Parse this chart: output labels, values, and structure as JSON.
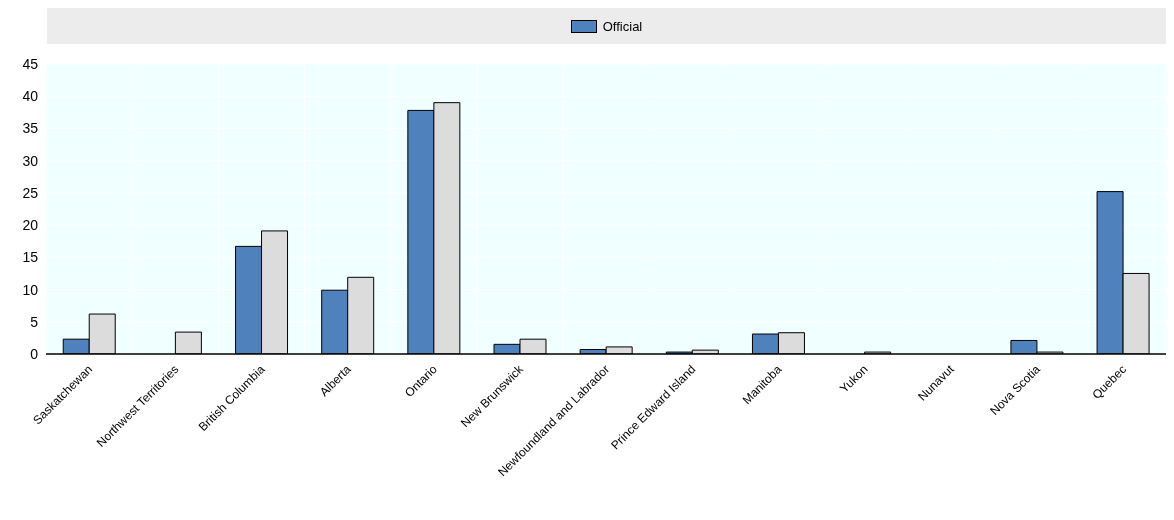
{
  "chart_data": {
    "type": "bar",
    "categories": [
      "Saskatchewan",
      "Northwest Territories",
      "British Columbia",
      "Alberta",
      "Ontario",
      "New Brunswick",
      "Newfoundland and Labrador",
      "Prince Edward Island",
      "Manitoba",
      "Yukon",
      "Nunavut",
      "Nova Scotia",
      "Quebec"
    ],
    "series": [
      {
        "name": "Official",
        "color": "#4f81bd",
        "values": [
          2.3,
          null,
          16.7,
          9.9,
          37.8,
          1.5,
          0.7,
          0.3,
          3.1,
          null,
          null,
          2.1,
          25.2
        ]
      },
      {
        "color": "#dcdcdc",
        "values": [
          6.2,
          3.4,
          19.1,
          11.9,
          39.0,
          2.3,
          1.1,
          0.6,
          3.3,
          0.3,
          null,
          0.3,
          12.5
        ]
      }
    ],
    "ylim": [
      0,
      45
    ],
    "yticks": [
      0,
      5,
      10,
      15,
      20,
      25,
      30,
      35,
      40,
      45
    ],
    "grid": true,
    "legend": "top"
  }
}
